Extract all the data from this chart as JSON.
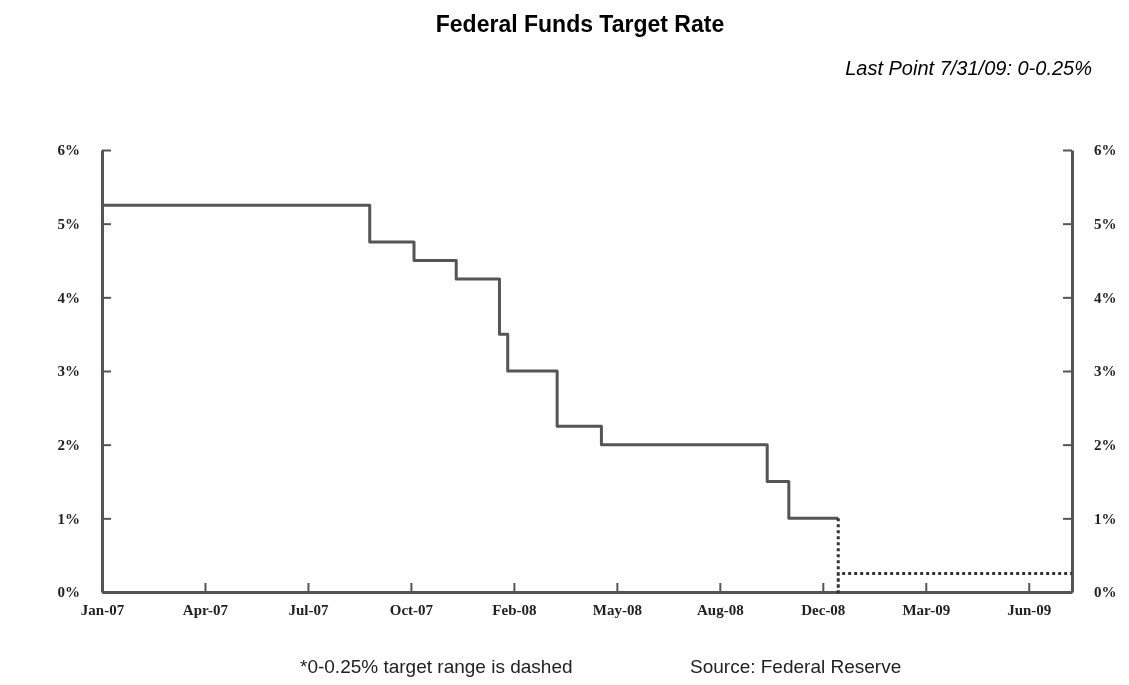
{
  "chart_data": {
    "type": "step",
    "title": "Federal Funds Target Rate",
    "subtitle": "Last Point 7/31/09: 0-0.25%",
    "annotations": [
      "*0-0.25% target range is dashed",
      "Source: Federal Reserve"
    ],
    "series": [
      {
        "color": "#555555",
        "line_style": "solid",
        "x": [
          "2007-01-01",
          "2007-09-18",
          "2007-10-31",
          "2007-12-11",
          "2008-01-22",
          "2008-01-30",
          "2008-03-18",
          "2008-04-30",
          "2008-10-08",
          "2008-10-29",
          "2008-12-16"
        ],
        "values": [
          5.25,
          4.75,
          4.5,
          4.25,
          3.5,
          3.0,
          2.25,
          2.0,
          1.5,
          1.0,
          1.0
        ]
      },
      {
        "type": "line",
        "color": "#333333",
        "line_style": "dotted",
        "x": [
          "2008-12-16",
          "2008-12-16",
          "2008-12-16",
          "2009-07-31"
        ],
        "values": [
          1.0,
          0,
          0.25,
          0.25
        ]
      }
    ],
    "xlim": [
      "2007-01-01",
      "2009-07-31"
    ],
    "xticks": [
      {
        "value": "2007-01-01",
        "label": "Jan-07"
      },
      {
        "value": "2007-04-11",
        "label": "Apr-07"
      },
      {
        "value": "2007-07-20",
        "label": "Jul-07"
      },
      {
        "value": "2007-10-28",
        "label": "Oct-07"
      },
      {
        "value": "2008-02-05",
        "label": "Feb-08"
      },
      {
        "value": "2008-05-15",
        "label": "May-08"
      },
      {
        "value": "2008-08-23",
        "label": "Aug-08"
      },
      {
        "value": "2008-12-01",
        "label": "Dec-08"
      },
      {
        "value": "2009-03-11",
        "label": "Mar-09"
      },
      {
        "value": "2009-06-19",
        "label": "Jun-09"
      }
    ],
    "ylim": [
      0,
      6
    ],
    "yticks": [
      {
        "value": 0,
        "label": "0%"
      },
      {
        "value": 1,
        "label": "1%"
      },
      {
        "value": 2,
        "label": "2%"
      },
      {
        "value": 3,
        "label": "3%"
      },
      {
        "value": 4,
        "label": "4%"
      },
      {
        "value": 5,
        "label": "5%"
      },
      {
        "value": 6,
        "label": "6%"
      }
    ],
    "y2lim": [
      0,
      6
    ],
    "y2ticks": [
      {
        "value": 0,
        "label": "0%"
      },
      {
        "value": 1,
        "label": "1%"
      },
      {
        "value": 2,
        "label": "2%"
      },
      {
        "value": 3,
        "label": "3%"
      },
      {
        "value": 4,
        "label": "4%"
      },
      {
        "value": 5,
        "label": "5%"
      },
      {
        "value": 6,
        "label": "6%"
      }
    ],
    "grid": false,
    "marker": "none"
  }
}
